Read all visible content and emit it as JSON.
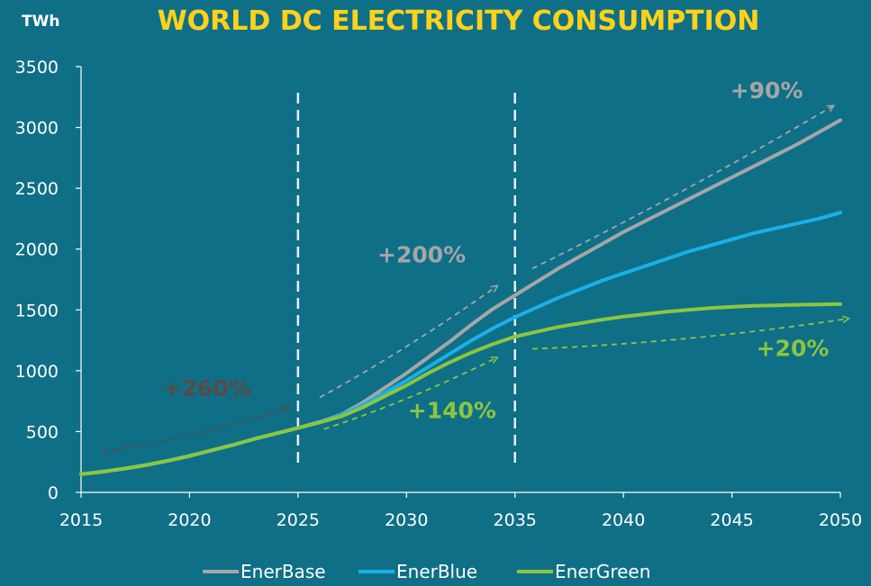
{
  "chart_data": {
    "type": "line",
    "title": "WORLD DC ELECTRICITY CONSUMPTION",
    "ylabel": "TWh",
    "xlabel": "",
    "xlim": [
      2015,
      2050
    ],
    "ylim": [
      0,
      3500
    ],
    "x_ticks": [
      "2015",
      "2020",
      "2025",
      "2030",
      "2035",
      "2040",
      "2045",
      "2050"
    ],
    "y_ticks": [
      "0",
      "500",
      "1000",
      "1500",
      "2000",
      "2500",
      "3000",
      "3500"
    ],
    "grid": false,
    "legend_position": "bottom",
    "colors": {
      "background": "#0f6f87",
      "title": "#ffd21a",
      "EnerBase": "#a6a6a6",
      "EnerBlue": "#1ab0ea",
      "EnerGreen": "#8cc63f",
      "dark_annotation": "#5a4a45"
    },
    "series": [
      {
        "name": "EnerBase",
        "x": [
          2015,
          2016,
          2017,
          2018,
          2019,
          2020,
          2021,
          2022,
          2023,
          2024,
          2025,
          2026,
          2027,
          2028,
          2029,
          2030,
          2031,
          2032,
          2033,
          2034,
          2035,
          2036,
          2037,
          2038,
          2039,
          2040,
          2041,
          2042,
          2043,
          2044,
          2045,
          2046,
          2047,
          2048,
          2049,
          2050
        ],
        "values": [
          150,
          170,
          195,
          225,
          260,
          300,
          345,
          390,
          440,
          485,
          530,
          580,
          640,
          740,
          860,
          980,
          1110,
          1240,
          1380,
          1510,
          1620,
          1730,
          1840,
          1940,
          2040,
          2140,
          2230,
          2320,
          2410,
          2500,
          2590,
          2680,
          2770,
          2860,
          2960,
          3060
        ]
      },
      {
        "name": "EnerBlue",
        "x": [
          2015,
          2016,
          2017,
          2018,
          2019,
          2020,
          2021,
          2022,
          2023,
          2024,
          2025,
          2026,
          2027,
          2028,
          2029,
          2030,
          2031,
          2032,
          2033,
          2034,
          2035,
          2036,
          2037,
          2038,
          2039,
          2040,
          2041,
          2042,
          2043,
          2044,
          2045,
          2046,
          2047,
          2048,
          2049,
          2050
        ],
        "values": [
          150,
          170,
          195,
          225,
          260,
          300,
          345,
          390,
          440,
          485,
          530,
          578,
          635,
          720,
          820,
          920,
          1030,
          1140,
          1250,
          1350,
          1440,
          1520,
          1600,
          1670,
          1740,
          1800,
          1860,
          1920,
          1980,
          2030,
          2080,
          2130,
          2170,
          2210,
          2250,
          2300
        ]
      },
      {
        "name": "EnerGreen",
        "x": [
          2015,
          2016,
          2017,
          2018,
          2019,
          2020,
          2021,
          2022,
          2023,
          2024,
          2025,
          2026,
          2027,
          2028,
          2029,
          2030,
          2031,
          2032,
          2033,
          2034,
          2035,
          2036,
          2037,
          2038,
          2039,
          2040,
          2041,
          2042,
          2043,
          2044,
          2045,
          2046,
          2047,
          2048,
          2049,
          2050
        ],
        "values": [
          150,
          170,
          195,
          225,
          260,
          300,
          345,
          390,
          440,
          485,
          530,
          575,
          625,
          700,
          790,
          880,
          980,
          1070,
          1150,
          1220,
          1280,
          1320,
          1360,
          1390,
          1420,
          1445,
          1465,
          1485,
          1500,
          1515,
          1525,
          1533,
          1538,
          1542,
          1545,
          1548
        ]
      }
    ],
    "vertical_lines_x": [
      2025,
      2035
    ],
    "annotations": [
      {
        "text": "+260%",
        "x": 2020.8,
        "y": 790,
        "color": "#5a4a45",
        "arrow": {
          "from": [
            2016,
            340
          ],
          "to": [
            2024.6,
            700
          ]
        }
      },
      {
        "text": "+200%",
        "x": 2030.7,
        "y": 1890,
        "color": "#a6a6a6",
        "arrow": {
          "from": [
            2026,
            780
          ],
          "to": [
            2034.2,
            1700
          ]
        }
      },
      {
        "text": "+140%",
        "x": 2032.1,
        "y": 610,
        "color": "#8cc63f",
        "arrow": {
          "from": [
            2026.2,
            520
          ],
          "to": [
            2034.2,
            1110
          ]
        }
      },
      {
        "text": "+90%",
        "x": 2046.6,
        "y": 3240,
        "color": "#a6a6a6",
        "arrow": {
          "from": [
            2035.8,
            1840
          ],
          "to": [
            2049.7,
            3180
          ]
        }
      },
      {
        "text": "+20%",
        "x": 2047.8,
        "y": 1120,
        "color": "#8cc63f",
        "arrow": {
          "from": [
            2035.8,
            1180
          ],
          "to": [
            2050.4,
            1430
          ]
        }
      }
    ]
  }
}
